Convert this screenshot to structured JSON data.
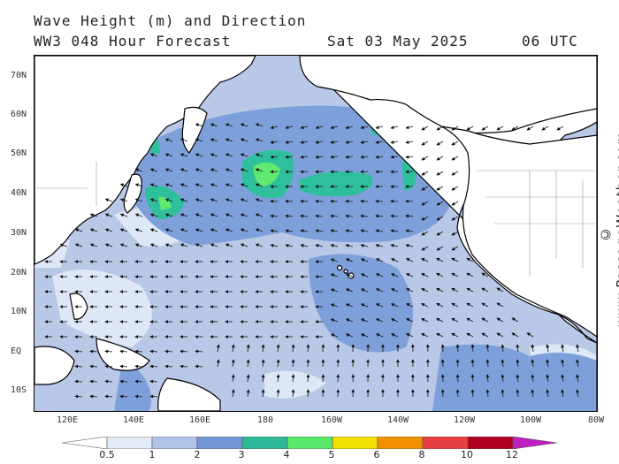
{
  "header": {
    "line1": "Wave Height (m) and Direction",
    "line2": "WW3 048 Hour Forecast",
    "date": "Sat 03 May 2025",
    "time": "06 UTC"
  },
  "credit": "© www.PassageWeather.com",
  "axes": {
    "lat_labels": [
      "70N",
      "60N",
      "50N",
      "40N",
      "30N",
      "20N",
      "10N",
      "EQ",
      "10S"
    ],
    "lon_labels": [
      "120E",
      "140E",
      "160E",
      "180",
      "160W",
      "140W",
      "120W",
      "100W",
      "80W"
    ]
  },
  "legend": {
    "labels": [
      "0.5",
      "1",
      "2",
      "3",
      "4",
      "5",
      "6",
      "8",
      "10",
      "12"
    ],
    "colors": [
      "#e4ecf8",
      "#b0c4e6",
      "#7396d6",
      "#2eb89a",
      "#5ae86a",
      "#f2e000",
      "#f29100",
      "#e84040",
      "#b00020",
      "#c020c0"
    ]
  },
  "colors": {
    "land": "#ffffff",
    "sea_low": "#b8c8e6",
    "sea_mid": "#7ea0da",
    "sea_high": "#2fbf9c",
    "sea_peak": "#60e870",
    "calm": "#dde7f6"
  }
}
